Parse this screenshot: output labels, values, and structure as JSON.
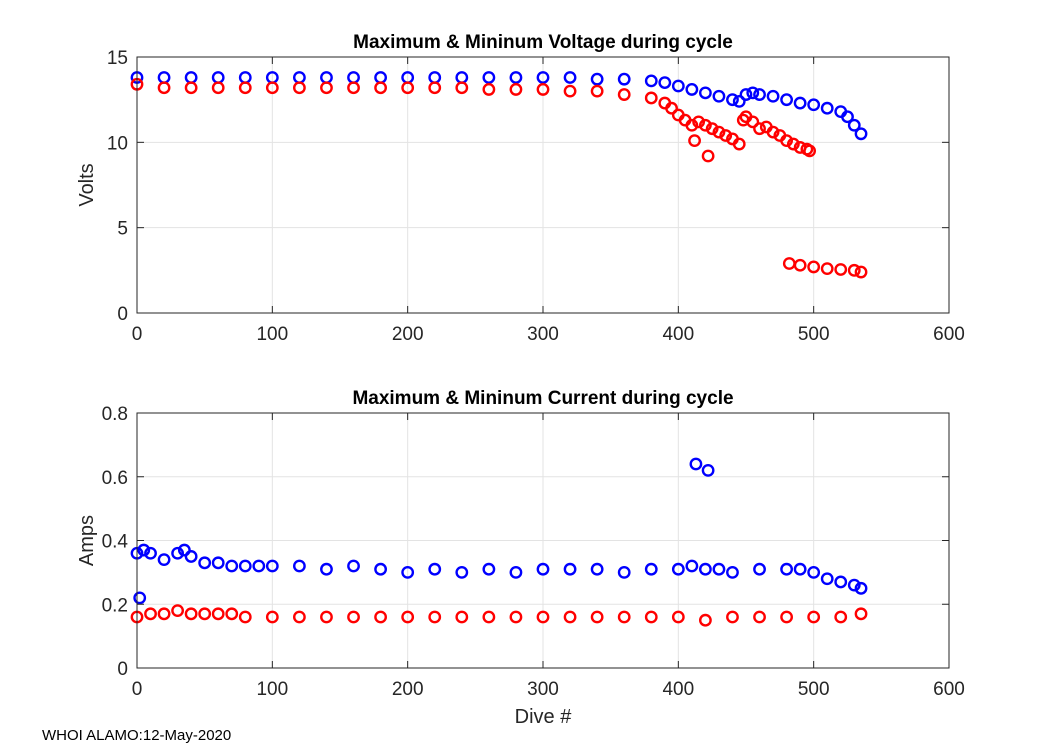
{
  "footer": "WHOI ALAMO:12-May-2020",
  "colors": {
    "max": "#0000ff",
    "min": "#ff0000"
  },
  "chart_data": [
    {
      "type": "scatter",
      "title": "Maximum & Mininum Voltage during cycle",
      "xlabel": "",
      "ylabel": "Volts",
      "xlim": [
        0,
        600
      ],
      "ylim": [
        0,
        15
      ],
      "xticks": [
        0,
        100,
        200,
        300,
        400,
        500,
        600
      ],
      "yticks": [
        0,
        5,
        10,
        15
      ],
      "grid": true,
      "series": [
        {
          "name": "Maximum",
          "marker": "open-circle",
          "x": [
            0,
            20,
            40,
            60,
            80,
            100,
            120,
            140,
            160,
            180,
            200,
            220,
            240,
            260,
            280,
            300,
            320,
            340,
            360,
            380,
            390,
            400,
            410,
            420,
            430,
            440,
            445,
            450,
            455,
            460,
            470,
            480,
            490,
            500,
            510,
            520,
            525,
            530,
            535
          ],
          "y": [
            13.8,
            13.8,
            13.8,
            13.8,
            13.8,
            13.8,
            13.8,
            13.8,
            13.8,
            13.8,
            13.8,
            13.8,
            13.8,
            13.8,
            13.8,
            13.8,
            13.8,
            13.7,
            13.7,
            13.6,
            13.5,
            13.3,
            13.1,
            12.9,
            12.7,
            12.5,
            12.4,
            12.8,
            12.9,
            12.8,
            12.7,
            12.5,
            12.3,
            12.2,
            12.0,
            11.8,
            11.5,
            11.0,
            10.5
          ]
        },
        {
          "name": "Minimum",
          "marker": "open-circle",
          "x": [
            0,
            20,
            40,
            60,
            80,
            100,
            120,
            140,
            160,
            180,
            200,
            220,
            240,
            260,
            280,
            300,
            320,
            340,
            360,
            380,
            390,
            395,
            400,
            405,
            410,
            412,
            415,
            420,
            422,
            425,
            430,
            435,
            440,
            445,
            448,
            450,
            455,
            460,
            465,
            470,
            475,
            480,
            485,
            490,
            495,
            497,
            482,
            490,
            500,
            510,
            520,
            530,
            535
          ],
          "y": [
            13.4,
            13.2,
            13.2,
            13.2,
            13.2,
            13.2,
            13.2,
            13.2,
            13.2,
            13.2,
            13.2,
            13.2,
            13.2,
            13.1,
            13.1,
            13.1,
            13.0,
            13.0,
            12.8,
            12.6,
            12.3,
            12.0,
            11.6,
            11.3,
            11.0,
            10.1,
            11.2,
            11.0,
            9.2,
            10.8,
            10.6,
            10.4,
            10.2,
            9.9,
            11.3,
            11.5,
            11.2,
            10.8,
            10.9,
            10.6,
            10.4,
            10.1,
            9.9,
            9.7,
            9.6,
            9.5,
            2.9,
            2.8,
            2.7,
            2.6,
            2.55,
            2.5,
            2.4
          ]
        }
      ]
    },
    {
      "type": "scatter",
      "title": "Maximum & Mininum Current during cycle",
      "xlabel": "Dive #",
      "ylabel": "Amps",
      "xlim": [
        0,
        600
      ],
      "ylim": [
        0,
        0.8
      ],
      "xticks": [
        0,
        100,
        200,
        300,
        400,
        500,
        600
      ],
      "yticks": [
        0,
        0.2,
        0.4,
        0.6,
        0.8
      ],
      "grid": true,
      "series": [
        {
          "name": "Maximum",
          "marker": "open-circle",
          "x": [
            0,
            2,
            5,
            10,
            20,
            30,
            35,
            40,
            50,
            60,
            70,
            80,
            90,
            100,
            120,
            140,
            160,
            180,
            200,
            220,
            240,
            260,
            280,
            300,
            320,
            340,
            360,
            380,
            400,
            410,
            413,
            420,
            422,
            430,
            440,
            460,
            480,
            490,
            500,
            510,
            520,
            530,
            535
          ],
          "y": [
            0.36,
            0.22,
            0.37,
            0.36,
            0.34,
            0.36,
            0.37,
            0.35,
            0.33,
            0.33,
            0.32,
            0.32,
            0.32,
            0.32,
            0.32,
            0.31,
            0.32,
            0.31,
            0.3,
            0.31,
            0.3,
            0.31,
            0.3,
            0.31,
            0.31,
            0.31,
            0.3,
            0.31,
            0.31,
            0.32,
            0.64,
            0.31,
            0.62,
            0.31,
            0.3,
            0.31,
            0.31,
            0.31,
            0.3,
            0.28,
            0.27,
            0.26,
            0.25
          ]
        },
        {
          "name": "Minimum",
          "marker": "open-circle",
          "x": [
            0,
            10,
            20,
            30,
            40,
            50,
            60,
            70,
            80,
            100,
            120,
            140,
            160,
            180,
            200,
            220,
            240,
            260,
            280,
            300,
            320,
            340,
            360,
            380,
            400,
            420,
            440,
            460,
            480,
            500,
            520,
            535
          ],
          "y": [
            0.16,
            0.17,
            0.17,
            0.18,
            0.17,
            0.17,
            0.17,
            0.17,
            0.16,
            0.16,
            0.16,
            0.16,
            0.16,
            0.16,
            0.16,
            0.16,
            0.16,
            0.16,
            0.16,
            0.16,
            0.16,
            0.16,
            0.16,
            0.16,
            0.16,
            0.15,
            0.16,
            0.16,
            0.16,
            0.16,
            0.16,
            0.17
          ]
        }
      ]
    }
  ]
}
